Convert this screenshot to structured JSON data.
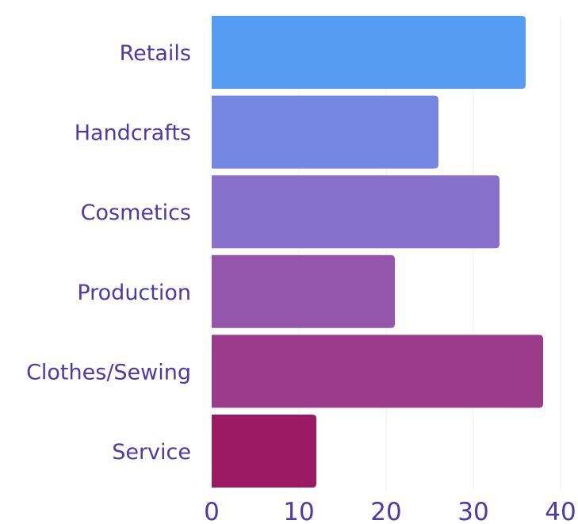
{
  "chart_data": {
    "type": "bar",
    "orientation": "horizontal",
    "categories": [
      "Retails",
      "Handcrafts",
      "Cosmetics",
      "Production",
      "Clothes/Sewing",
      "Service"
    ],
    "values": [
      36,
      26,
      33,
      21,
      38,
      12
    ],
    "bar_colors": [
      "#549df2",
      "#7387e3",
      "#8870cd",
      "#9655ad",
      "#9c3a8b",
      "#9c1a63"
    ],
    "title": "",
    "xlabel": "",
    "ylabel": "",
    "xlim": [
      0,
      40
    ],
    "xticks": [
      0,
      10,
      20,
      30,
      40
    ],
    "grid": true,
    "legend": "none",
    "text_color": "#4b3aa8"
  }
}
